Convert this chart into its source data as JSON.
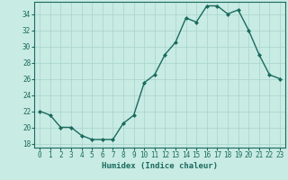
{
  "x": [
    0,
    1,
    2,
    3,
    4,
    5,
    6,
    7,
    8,
    9,
    10,
    11,
    12,
    13,
    14,
    15,
    16,
    17,
    18,
    19,
    20,
    21,
    22,
    23
  ],
  "y": [
    22,
    21.5,
    20,
    20,
    19,
    18.5,
    18.5,
    18.5,
    20.5,
    21.5,
    25.5,
    26.5,
    29,
    30.5,
    33.5,
    33,
    35,
    35,
    34,
    34.5,
    32,
    29,
    26.5,
    26
  ],
  "line_color": "#1a6b5e",
  "marker": "D",
  "marker_size": 2.0,
  "bg_color": "#c8ebe4",
  "grid_color": "#a8d4cc",
  "xlabel": "Humidex (Indice chaleur)",
  "ylim": [
    17.5,
    35.5
  ],
  "xlim": [
    -0.5,
    23.5
  ],
  "yticks": [
    18,
    20,
    22,
    24,
    26,
    28,
    30,
    32,
    34
  ],
  "xticks": [
    0,
    1,
    2,
    3,
    4,
    5,
    6,
    7,
    8,
    9,
    10,
    11,
    12,
    13,
    14,
    15,
    16,
    17,
    18,
    19,
    20,
    21,
    22,
    23
  ],
  "xlabel_fontsize": 6.5,
  "tick_fontsize": 5.5,
  "linewidth": 1.0
}
